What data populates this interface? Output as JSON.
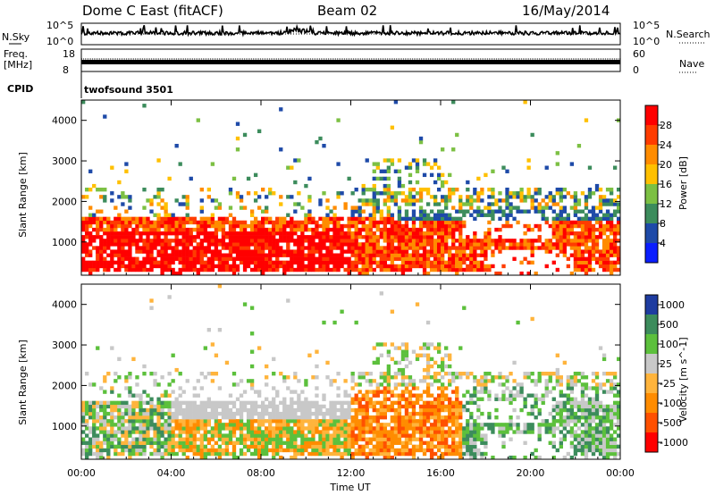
{
  "header": {
    "title": "Dome C East (fitACF)",
    "beam": "Beam 02",
    "date": "16/May/2014"
  },
  "strip_labels": {
    "nsky": "N.Sky",
    "nsearch": "N.Search",
    "freq_line1": "Freq.",
    "freq_line2": "[MHz]",
    "nave": "Nave",
    "cpid": "CPID",
    "cpid_value": "twofsound 3501",
    "nsky_ticks": [
      "10^5",
      "10^0"
    ],
    "nsearch_ticks": [
      "10^5",
      "10^0"
    ],
    "freq_ticks": [
      "18",
      "8"
    ],
    "nave_ticks": [
      "60",
      "0"
    ]
  },
  "chart_data": [
    {
      "type": "heatmap",
      "panel": "power",
      "ylabel": "Slant Range [km]",
      "ylim": [
        180,
        4500
      ],
      "yticks": [
        1000,
        2000,
        3000,
        4000
      ],
      "xlim": [
        0,
        24
      ],
      "colorbar": {
        "label": "Power [dB]",
        "ticks": [
          "28",
          "24",
          "20",
          "16",
          "12",
          "8",
          "4"
        ],
        "colors": [
          "#ff0000",
          "#ff3c00",
          "#ff8c00",
          "#ffc000",
          "#7cc043",
          "#3c8c5c",
          "#1e4aa8",
          "#0a1eff"
        ]
      }
    },
    {
      "type": "heatmap",
      "panel": "velocity",
      "ylabel": "Slant Range [km]",
      "ylim": [
        180,
        4500
      ],
      "yticks": [
        1000,
        2000,
        3000,
        4000
      ],
      "xlim": [
        0,
        24
      ],
      "colorbar": {
        "label": "Velocity [m s^-1]",
        "ticks": [
          "1000",
          "500",
          "100",
          "25",
          "-25",
          "-100",
          "-500",
          "-1000"
        ],
        "colors": [
          "#1e3ca0",
          "#3c8c5c",
          "#5cc03c",
          "#c8c8c8",
          "#ffb43c",
          "#ff8c00",
          "#ff5000",
          "#ff0000"
        ]
      }
    }
  ],
  "xaxis": {
    "label": "Time UT",
    "ticks": [
      "00:00",
      "04:00",
      "08:00",
      "12:00",
      "16:00",
      "20:00",
      "00:00"
    ]
  }
}
